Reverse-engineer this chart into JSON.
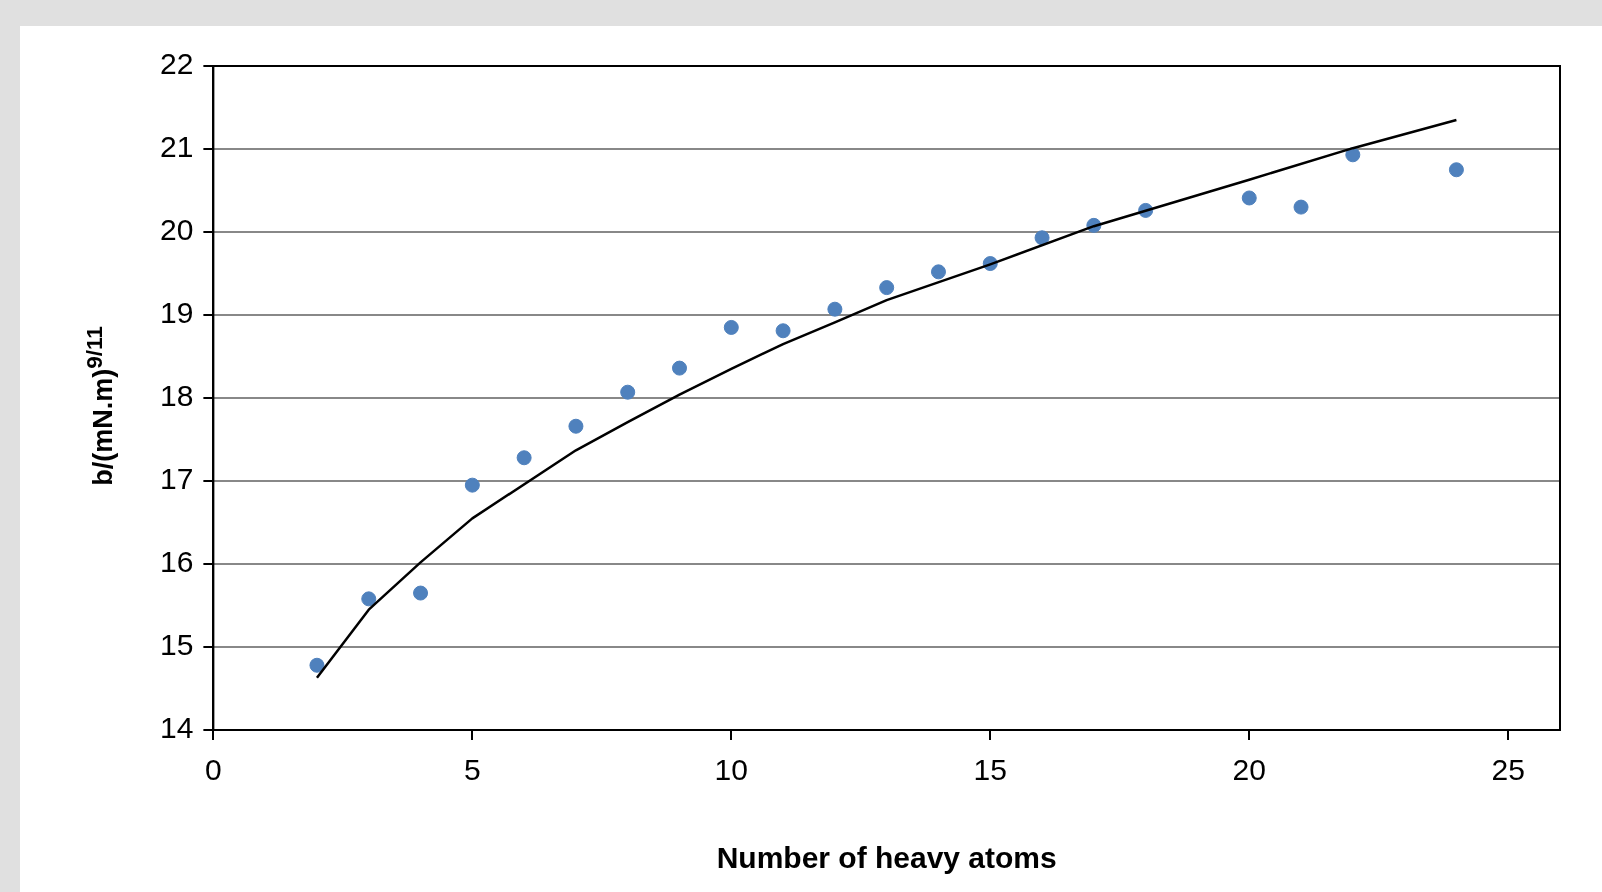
{
  "chart_data": {
    "type": "scatter",
    "xlabel": "Number of heavy atoms",
    "ylabel": "b/(mN.m)$^{9/11}$",
    "xlim": [
      0,
      26
    ],
    "xticks": [
      0,
      5,
      10,
      15,
      20,
      25
    ],
    "ylim": [
      14,
      22
    ],
    "yticks": [
      14,
      15,
      16,
      17,
      18,
      19,
      20,
      21,
      22
    ],
    "grid": "y",
    "legend": false,
    "marker": "circle",
    "series": [
      {
        "color": "#4f81bd",
        "x": [
          2,
          3,
          4,
          5,
          6,
          7,
          8,
          9,
          10,
          11,
          12,
          13,
          14,
          15,
          16,
          17,
          18,
          20,
          21,
          22,
          24
        ],
        "values": [
          14.78,
          15.58,
          15.65,
          16.95,
          17.28,
          17.66,
          18.07,
          18.36,
          18.85,
          18.81,
          19.07,
          19.33,
          19.52,
          19.62,
          19.93,
          20.08,
          20.26,
          20.41,
          20.3,
          20.93,
          20.75
        ]
      },
      {
        "type": "line",
        "color": "#000000",
        "marker": "none",
        "x": [
          2,
          3,
          4,
          5,
          7,
          8,
          9,
          10,
          11,
          12,
          13,
          15,
          17,
          20,
          22,
          24
        ],
        "values": [
          14.63,
          15.45,
          16.02,
          16.55,
          17.37,
          17.71,
          18.04,
          18.35,
          18.65,
          18.91,
          19.18,
          19.61,
          20.07,
          20.63,
          21.01,
          21.35
        ]
      }
    ]
  }
}
